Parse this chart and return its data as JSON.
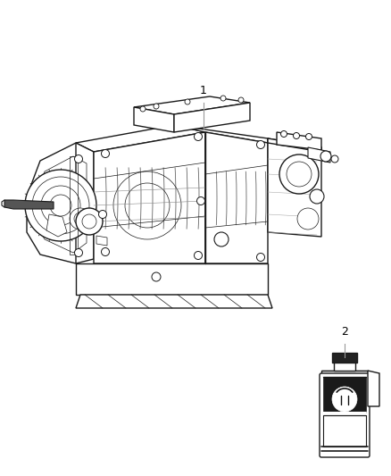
{
  "background_color": "#ffffff",
  "line_color": "#1a1a1a",
  "label_color": "#000000",
  "leader_line_color": "#999999",
  "fig_width": 4.38,
  "fig_height": 5.33,
  "dpi": 100,
  "label1_text": "1",
  "label2_text": "2"
}
